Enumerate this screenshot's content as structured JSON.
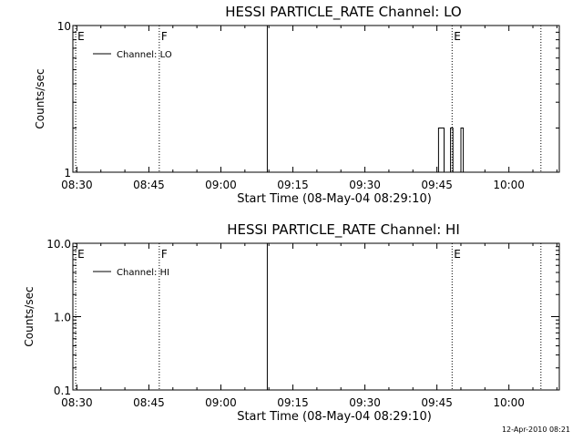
{
  "footer": "12-Apr-2010 08:21",
  "chart_data": [
    {
      "type": "line",
      "title": "HESSI PARTICLE_RATE Channel: LO",
      "xlabel": "Start Time (08-May-04 08:29:10)",
      "ylabel": "Counts/sec",
      "y_scale": "log",
      "ylim": [
        1,
        10
      ],
      "y_ticks": [
        {
          "value": 1,
          "label": "1"
        },
        {
          "value": 10,
          "label": "10"
        }
      ],
      "xlim": [
        "08:29:10",
        "10:10:30"
      ],
      "x_ticks": [
        "08:30",
        "08:45",
        "09:00",
        "09:15",
        "09:30",
        "09:45",
        "10:00"
      ],
      "legend": {
        "label": "Channel: LO",
        "position": "top-left"
      },
      "vlines": [
        {
          "x": "08:29:45",
          "label": "E",
          "style": "dotted"
        },
        {
          "x": "08:47:10",
          "label": "F",
          "style": "dotted"
        },
        {
          "x": "09:09:40",
          "label": "",
          "style": "solid"
        },
        {
          "x": "09:48:10",
          "label": "E",
          "style": "dotted"
        },
        {
          "x": "10:06:40",
          "label": "",
          "style": "dotted"
        }
      ],
      "series": [
        {
          "name": "Channel: LO",
          "points": [
            {
              "x": "09:45:20",
              "y": 1
            },
            {
              "x": "09:45:20",
              "y": 2
            },
            {
              "x": "09:46:30",
              "y": 2
            },
            {
              "x": "09:46:30",
              "y": 1
            },
            {
              "x": "09:47:50",
              "y": 1
            },
            {
              "x": "09:47:50",
              "y": 2
            },
            {
              "x": "09:48:20",
              "y": 2
            },
            {
              "x": "09:48:20",
              "y": 1
            },
            {
              "x": "09:50:00",
              "y": 1
            },
            {
              "x": "09:50:00",
              "y": 2
            },
            {
              "x": "09:50:30",
              "y": 2
            },
            {
              "x": "09:50:30",
              "y": 1
            }
          ]
        }
      ]
    },
    {
      "type": "line",
      "title": "HESSI PARTICLE_RATE Channel: HI",
      "xlabel": "Start Time (08-May-04 08:29:10)",
      "ylabel": "Counts/sec",
      "y_scale": "log",
      "ylim": [
        0.1,
        10
      ],
      "y_ticks": [
        {
          "value": 0.1,
          "label": "0.1"
        },
        {
          "value": 1,
          "label": "1.0"
        },
        {
          "value": 10,
          "label": "10.0"
        }
      ],
      "xlim": [
        "08:29:10",
        "10:10:30"
      ],
      "x_ticks": [
        "08:30",
        "08:45",
        "09:00",
        "09:15",
        "09:30",
        "09:45",
        "10:00"
      ],
      "legend": {
        "label": "Channel: HI",
        "position": "top-left"
      },
      "vlines": [
        {
          "x": "08:29:45",
          "label": "E",
          "style": "dotted"
        },
        {
          "x": "08:47:10",
          "label": "F",
          "style": "dotted"
        },
        {
          "x": "09:09:40",
          "label": "",
          "style": "solid"
        },
        {
          "x": "09:48:10",
          "label": "E",
          "style": "dotted"
        },
        {
          "x": "10:06:40",
          "label": "",
          "style": "dotted"
        }
      ],
      "series": [
        {
          "name": "Channel: HI",
          "points": []
        }
      ]
    }
  ]
}
